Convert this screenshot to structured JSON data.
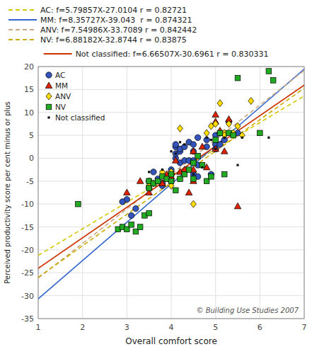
{
  "chart_data": {
    "type": "scatter",
    "xlabel": "Overall comfort score",
    "ylabel": "Perceived productivity score per cent minus or plus",
    "annotations": [
      "© Building Use Studies 2007"
    ],
    "xlim": [
      1,
      7
    ],
    "ylim": [
      -35,
      20
    ],
    "xticks": [
      1,
      2,
      3,
      4,
      5,
      6,
      7
    ],
    "yticks": [
      -35,
      -30,
      -25,
      -20,
      -15,
      -10,
      -5,
      0,
      5,
      10,
      15,
      20
    ],
    "grid": true,
    "legend": "upper left",
    "series": [
      {
        "name": "AC",
        "type": "scatter",
        "color": "#3355bb",
        "marker": "circle",
        "x": [
          3.0,
          3.1,
          3.2,
          2.9,
          3.5,
          3.5,
          3.6,
          3.7,
          3.8,
          3.9,
          3.8,
          4.0,
          4.0,
          4.0,
          4.1,
          4.1,
          4.1,
          4.1,
          4.2,
          4.2,
          4.2,
          4.3,
          4.3,
          4.4,
          4.4,
          4.5,
          4.5,
          4.5,
          4.5,
          4.6,
          4.6,
          4.6,
          4.8,
          4.8,
          4.9,
          5.0,
          5.0,
          5.0,
          5.1,
          5.1,
          5.2,
          5.3,
          5.5
        ],
        "values": [
          -9.0,
          -12.5,
          -11.0,
          -9.5,
          -5.0,
          -6.5,
          -3.0,
          -4.5,
          -5.5,
          -4.0,
          -6.0,
          -5.0,
          -3.5,
          -2.5,
          0.0,
          1.0,
          2.5,
          3.0,
          1.5,
          2.0,
          -1.0,
          -0.5,
          2.5,
          3.5,
          -0.5,
          -0.5,
          1.5,
          3.0,
          -3.5,
          -4.0,
          4.5,
          -1.5,
          4.0,
          2.5,
          -3.5,
          5.0,
          3.0,
          2.0,
          5.5,
          3.0,
          4.0,
          8.0,
          5.5
        ]
      },
      {
        "name": "MM",
        "type": "scatter",
        "color": "#dd2200",
        "marker": "triangle",
        "x": [
          3.0,
          3.3,
          3.5,
          3.8,
          3.9,
          4.0,
          4.0,
          4.1,
          4.2,
          4.3,
          4.4,
          4.5,
          4.5,
          4.5,
          4.7,
          4.8,
          5.0,
          5.0,
          5.0,
          5.1,
          5.2,
          5.3,
          5.5
        ],
        "values": [
          -7.5,
          -5.0,
          -7.5,
          -5.5,
          -3.5,
          -4.0,
          -3.0,
          -0.5,
          -3.0,
          -2.5,
          -7.5,
          -2.5,
          -5.0,
          1.5,
          2.5,
          -2.0,
          2.0,
          8.0,
          9.5,
          6.0,
          1.5,
          8.5,
          -10.5
        ]
      },
      {
        "name": "ANV",
        "type": "scatter",
        "color": "#ffdd00",
        "marker": "diamond",
        "x": [
          3.5,
          3.6,
          3.8,
          4.0,
          4.0,
          4.2,
          4.5,
          4.8,
          4.9,
          5.0,
          5.1,
          5.2,
          5.2,
          5.3,
          5.4,
          5.5,
          5.6,
          5.8
        ],
        "values": [
          -6.0,
          -5.5,
          -3.0,
          -3.0,
          -6.0,
          6.5,
          -10.0,
          5.5,
          7.0,
          7.5,
          12.0,
          5.5,
          5.0,
          7.5,
          5.5,
          7.0,
          5.0,
          12.5
        ]
      },
      {
        "name": "NV",
        "type": "scatter",
        "color": "#22aa22",
        "marker": "square",
        "x": [
          1.9,
          2.8,
          2.9,
          3.0,
          3.1,
          3.2,
          3.3,
          3.4,
          3.5,
          3.5,
          3.5,
          3.6,
          3.7,
          3.8,
          3.9,
          4.0,
          4.0,
          4.1,
          4.2,
          4.3,
          4.4,
          4.5,
          4.5,
          4.6,
          4.7,
          4.8,
          4.9,
          5.0,
          5.1,
          5.2,
          5.3,
          5.4,
          5.5,
          6.0,
          6.2,
          6.3
        ],
        "values": [
          -10.0,
          -15.5,
          -15.0,
          -15.5,
          -14.5,
          -16.0,
          -15.0,
          -12.5,
          -12.0,
          -6.5,
          -5.0,
          -5.5,
          -5.0,
          -4.0,
          -4.5,
          -3.5,
          -5.0,
          -7.0,
          -4.5,
          -3.5,
          -2.5,
          -1.0,
          -4.5,
          0.5,
          -1.5,
          -5.0,
          -4.0,
          4.0,
          5.5,
          -3.5,
          5.5,
          5.0,
          17.5,
          5.5,
          19.0,
          17.0
        ]
      },
      {
        "name": "Not classified",
        "type": "scatter",
        "color": "#111111",
        "marker": "small-square",
        "x": [
          3.5,
          3.8,
          4.0,
          4.1,
          4.2,
          4.3,
          4.5,
          4.7,
          4.8,
          4.9,
          5.0,
          5.2,
          5.5,
          5.6,
          6.2
        ],
        "values": [
          -3.0,
          -2.5,
          1.5,
          1.0,
          3.5,
          3.0,
          -3.5,
          -2.0,
          4.5,
          4.0,
          2.0,
          4.5,
          -1.5,
          4.5,
          4.5
        ]
      },
      {
        "name": "AC: f=5.79857X-27.0104 r = 0.82721",
        "type": "line",
        "color": "#d4c800",
        "line_style": "dashed",
        "x": [
          1,
          7
        ],
        "values": [
          -21.21183,
          13.57959
        ]
      },
      {
        "name": "MM: f=8.35727X-39.043  r = 0.874321",
        "type": "line",
        "color": "#3366cc",
        "line_style": "solid",
        "x": [
          1,
          7
        ],
        "values": [
          -30.68573,
          19.45789
        ]
      },
      {
        "name": "ANV: f=7.54986X-33.7089 r = 0.842442",
        "type": "line",
        "color": "#c8a882",
        "line_style": "dashed",
        "x": [
          1,
          7
        ],
        "values": [
          -26.15904,
          19.14012
        ]
      },
      {
        "name": "NV: f=6.88182X-32.8744 r = 0.83875",
        "type": "line",
        "color": "#ccaa00",
        "line_style": "dashed",
        "x": [
          1,
          7
        ],
        "values": [
          -25.99258,
          15.29834
        ]
      },
      {
        "name": "Not classified: f=6.66507X-30.6961 r = 0.830331",
        "type": "line",
        "color": "#cc3300",
        "line_style": "solid",
        "x": [
          1,
          7
        ],
        "values": [
          -24.03103,
          15.95939
        ]
      }
    ]
  }
}
